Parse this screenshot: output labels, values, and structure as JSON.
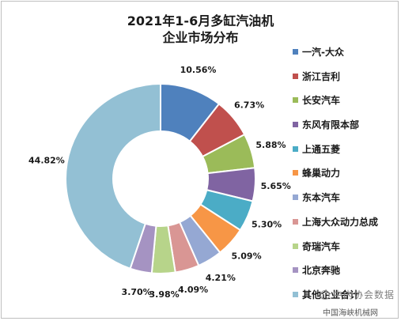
{
  "chart_data": {
    "type": "pie",
    "donut": true,
    "title": "2021年1-6月多缸汽油机",
    "subtitle": "企业市场分布",
    "legend_position": "right",
    "start_angle_deg": 0,
    "direction": "clockwise",
    "slices": [
      {
        "label": "一汽-大众",
        "value": 10.56,
        "display": "10.56%",
        "color": "#4f81bd"
      },
      {
        "label": "浙江吉利",
        "value": 6.73,
        "display": "6.73%",
        "color": "#c0504d"
      },
      {
        "label": "长安汽车",
        "value": 5.88,
        "display": "5.88%",
        "color": "#9bbb59"
      },
      {
        "label": "东风有限本部",
        "value": 5.65,
        "display": "5.65%",
        "color": "#8064a2"
      },
      {
        "label": "上通五菱",
        "value": 5.3,
        "display": "5.30%",
        "color": "#4bacc6"
      },
      {
        "label": "蜂巢动力",
        "value": 5.09,
        "display": "5.09%",
        "color": "#f79646"
      },
      {
        "label": "东本汽车",
        "value": 4.21,
        "display": "4.21%",
        "color": "#95a8d3"
      },
      {
        "label": "上海大众动力总成",
        "value": 4.09,
        "display": "4.09%",
        "color": "#d99694"
      },
      {
        "label": "奇瑞汽车",
        "value": 3.98,
        "display": "3.98%",
        "color": "#b7d48a"
      },
      {
        "label": "北京奔驰",
        "value": 3.7,
        "display": "3.70%",
        "color": "#a593c2"
      },
      {
        "label": "其他企业合计",
        "value": 44.82,
        "display": "44.82%",
        "color": "#93c0d4"
      }
    ]
  },
  "watermark": {
    "line1": "中内协会数据",
    "line2": "中国海峡机械网"
  }
}
